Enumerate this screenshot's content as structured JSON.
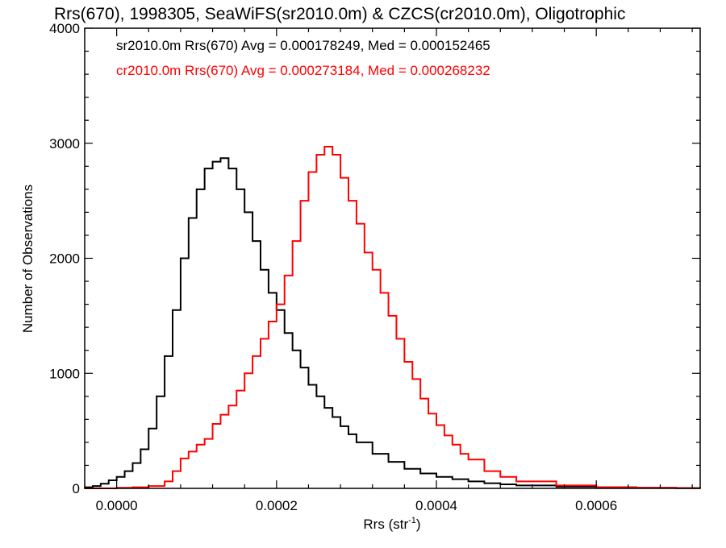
{
  "chart_data": {
    "type": "line",
    "title": "Rrs(670), 1998305, SeaWiFS(sr2010.0m) & CZCS(cr2010.0m), Oligotrophic",
    "xlabel_main": "Rrs (str",
    "xlabel_sup": "-1",
    "xlabel_close": ")",
    "ylabel": "Number of Observations",
    "xlim": [
      -4e-05,
      0.00073
    ],
    "ylim": [
      0,
      4000
    ],
    "x_ticks": [
      0.0,
      0.0002,
      0.0004,
      0.0006
    ],
    "x_tick_labels": [
      "0.0000",
      "0.0002",
      "0.0004",
      "0.0006"
    ],
    "y_ticks": [
      0,
      1000,
      2000,
      3000,
      4000
    ],
    "y_tick_labels": [
      "0",
      "1000",
      "2000",
      "3000",
      "4000"
    ],
    "annotations": [
      {
        "text": "sr2010.0m Rrs(670) Avg = 0.000178249, Med = 0.000152465",
        "color": "#000000"
      },
      {
        "text": "cr2010.0m Rrs(670) Avg = 0.000273184, Med = 0.000268232",
        "color": "#ff0000"
      }
    ],
    "series": [
      {
        "color": "#000000",
        "x": [
          -4e-05,
          -3e-05,
          -2e-05,
          -1e-05,
          0.0,
          1e-05,
          2e-05,
          3e-05,
          4e-05,
          5e-05,
          6e-05,
          7e-05,
          8e-05,
          9e-05,
          0.0001,
          0.00011,
          0.00012,
          0.00013,
          0.00014,
          0.00015,
          0.00016,
          0.00017,
          0.00018,
          0.00019,
          0.0002,
          0.00021,
          0.00022,
          0.00023,
          0.00024,
          0.00025,
          0.00026,
          0.00027,
          0.00028,
          0.00029,
          0.0003,
          0.00032,
          0.00034,
          0.00036,
          0.00038,
          0.0004,
          0.00042,
          0.00044,
          0.00046,
          0.00048,
          0.0005,
          0.00055,
          0.0006,
          0.00065,
          0.0007,
          0.00073
        ],
        "y": [
          10,
          20,
          40,
          70,
          100,
          150,
          220,
          340,
          520,
          800,
          1150,
          1550,
          2000,
          2350,
          2600,
          2780,
          2840,
          2870,
          2780,
          2600,
          2400,
          2150,
          1900,
          1700,
          1550,
          1350,
          1200,
          1050,
          900,
          800,
          700,
          620,
          540,
          470,
          400,
          300,
          230,
          170,
          130,
          100,
          80,
          60,
          45,
          35,
          25,
          15,
          10,
          5,
          3,
          2
        ]
      },
      {
        "color": "#ff0000",
        "x": [
          -4e-05,
          0.0,
          2e-05,
          4e-05,
          6e-05,
          7e-05,
          8e-05,
          9e-05,
          0.0001,
          0.00011,
          0.00012,
          0.00013,
          0.00014,
          0.00015,
          0.00016,
          0.00017,
          0.00018,
          0.00019,
          0.0002,
          0.00021,
          0.00022,
          0.00023,
          0.00024,
          0.00025,
          0.00026,
          0.00027,
          0.00028,
          0.00029,
          0.0003,
          0.00031,
          0.00032,
          0.00033,
          0.00034,
          0.00035,
          0.00036,
          0.00037,
          0.00038,
          0.00039,
          0.0004,
          0.00041,
          0.00042,
          0.00043,
          0.00044,
          0.00046,
          0.00048,
          0.0005,
          0.00055,
          0.0006,
          0.00065,
          0.0007,
          0.00073
        ],
        "y": [
          0,
          5,
          10,
          20,
          60,
          150,
          260,
          320,
          380,
          430,
          560,
          640,
          720,
          850,
          1000,
          1150,
          1300,
          1450,
          1600,
          1850,
          2150,
          2500,
          2750,
          2900,
          2970,
          2900,
          2700,
          2500,
          2300,
          2050,
          1900,
          1700,
          1500,
          1300,
          1100,
          950,
          780,
          650,
          550,
          460,
          380,
          300,
          250,
          150,
          100,
          60,
          25,
          10,
          5,
          2,
          0
        ]
      }
    ]
  }
}
